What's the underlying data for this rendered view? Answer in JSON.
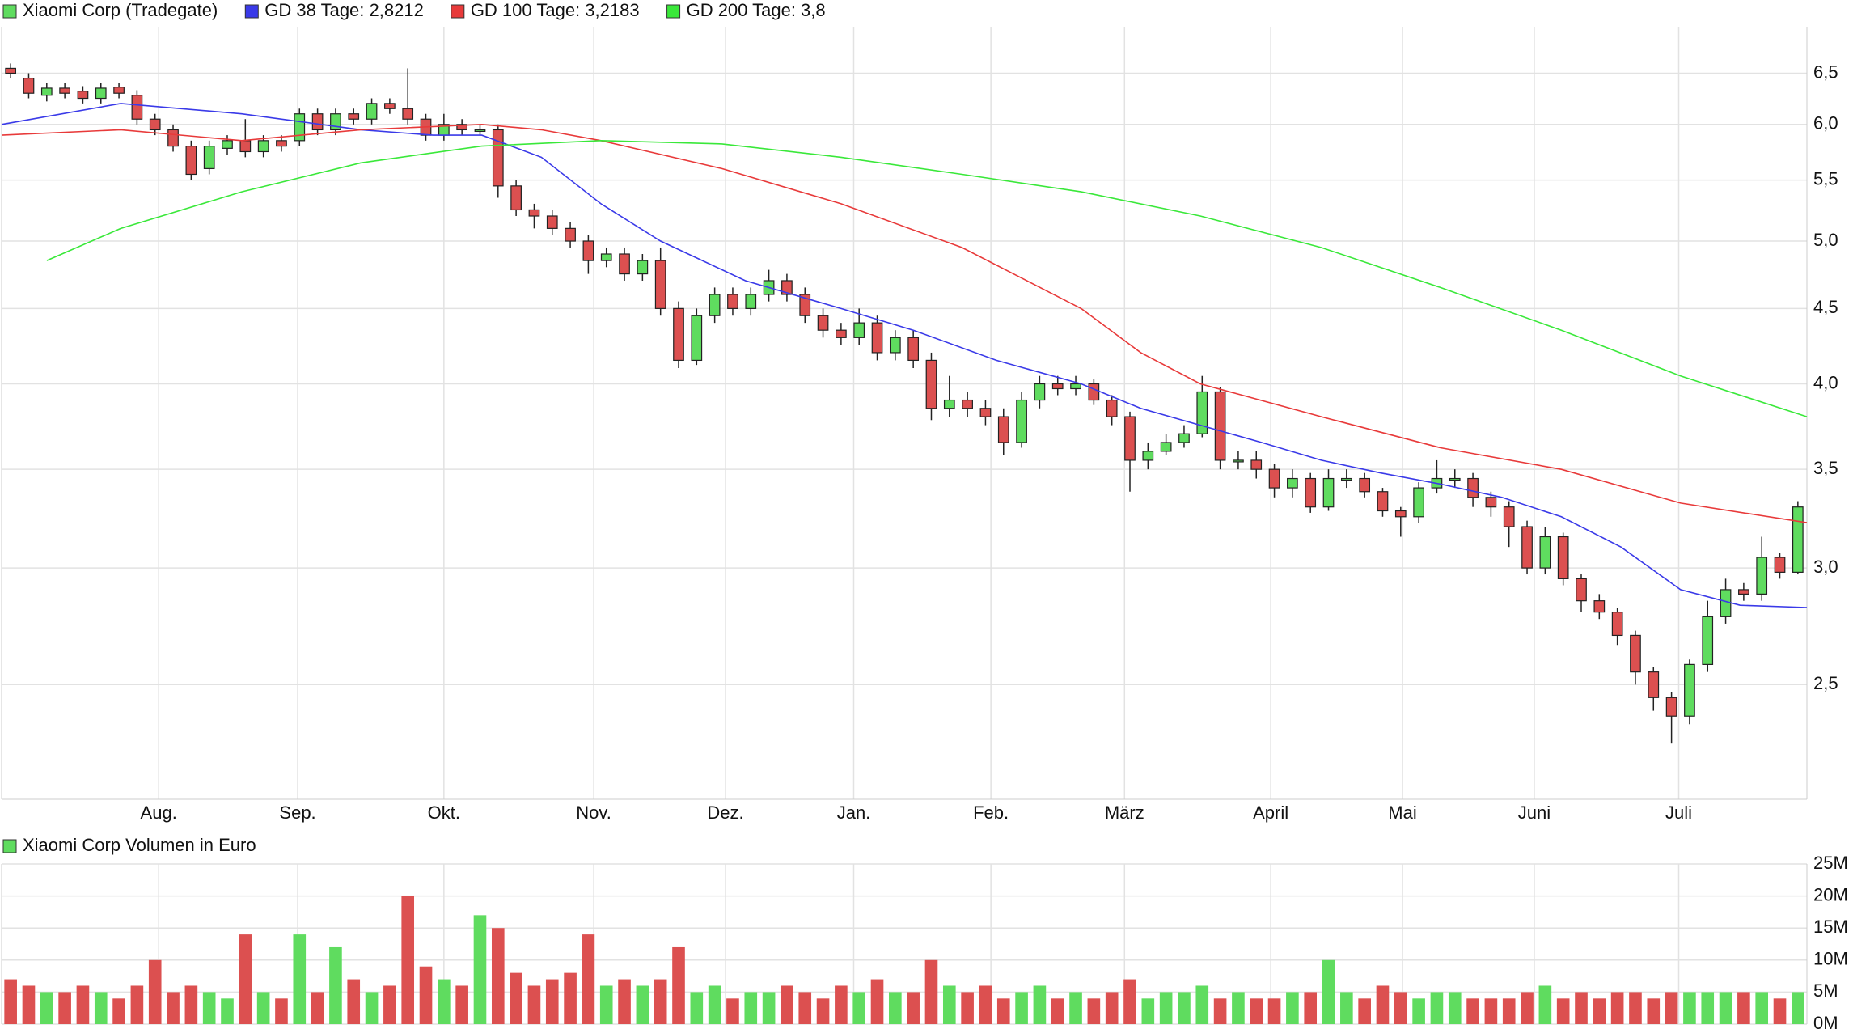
{
  "chart_data": {
    "type": "candlestick",
    "title": "Xiaomi Corp (Tradegate)",
    "log_scale": true,
    "grid": true,
    "up_color": "#5fdc5f",
    "down_color": "#dc5050",
    "xlim": [
      0,
      100
    ],
    "xticks": [
      {
        "value": 8.7,
        "label": "Aug."
      },
      {
        "value": 16.4,
        "label": "Sep."
      },
      {
        "value": 24.5,
        "label": "Okt."
      },
      {
        "value": 32.8,
        "label": "Nov."
      },
      {
        "value": 40.1,
        "label": "Dez."
      },
      {
        "value": 47.2,
        "label": "Jan."
      },
      {
        "value": 54.8,
        "label": "Feb."
      },
      {
        "value": 62.2,
        "label": "März"
      },
      {
        "value": 70.3,
        "label": "April"
      },
      {
        "value": 77.6,
        "label": "Mai"
      },
      {
        "value": 84.9,
        "label": "Juni"
      },
      {
        "value": 92.9,
        "label": "Juli"
      }
    ],
    "ylim": [
      2.09,
      6.99
    ],
    "yticks": [
      {
        "value": 2.5,
        "label": "2,5"
      },
      {
        "value": 3,
        "label": "3,0"
      },
      {
        "value": 3.5,
        "label": "3,5"
      },
      {
        "value": 4,
        "label": "4,0"
      },
      {
        "value": 4.5,
        "label": "4,5"
      },
      {
        "value": 5,
        "label": "5,0"
      },
      {
        "value": 5.5,
        "label": "5,5"
      },
      {
        "value": 6,
        "label": "6,0"
      },
      {
        "value": 6.5,
        "label": "6,5"
      }
    ],
    "open": [
      6.55,
      6.45,
      6.28,
      6.35,
      6.32,
      6.25,
      6.36,
      6.28,
      6.05,
      5.95,
      5.8,
      5.6,
      5.78,
      5.85,
      5.75,
      5.85,
      5.85,
      6.1,
      5.95,
      6.1,
      6.05,
      6.2,
      6.15,
      6.05,
      5.9,
      6.0,
      5.95,
      5.95,
      5.45,
      5.25,
      5.2,
      5.1,
      5.0,
      4.85,
      4.9,
      4.75,
      4.85,
      4.5,
      4.15,
      4.45,
      4.6,
      4.5,
      4.6,
      4.7,
      4.6,
      4.45,
      4.35,
      4.3,
      4.4,
      4.2,
      4.3,
      4.15,
      3.85,
      3.9,
      3.85,
      3.8,
      3.65,
      3.9,
      4.0,
      3.97,
      4.0,
      3.9,
      3.8,
      3.55,
      3.6,
      3.65,
      3.7,
      3.95,
      3.55,
      3.55,
      3.5,
      3.4,
      3.45,
      3.3,
      3.45,
      3.45,
      3.38,
      3.28,
      3.25,
      3.4,
      3.45,
      3.45,
      3.35,
      3.3,
      3.2,
      3.0,
      3.15,
      2.95,
      2.85,
      2.8,
      2.7,
      2.55,
      2.45,
      2.38,
      2.58,
      2.78,
      2.9,
      2.88,
      3.05,
      2.98
    ],
    "high": [
      6.6,
      6.5,
      6.4,
      6.4,
      6.37,
      6.4,
      6.4,
      6.33,
      6.1,
      6.0,
      5.85,
      5.85,
      5.9,
      6.05,
      5.9,
      5.9,
      6.15,
      6.15,
      6.15,
      6.15,
      6.25,
      6.25,
      6.55,
      6.1,
      6.1,
      6.05,
      6.0,
      6.0,
      5.5,
      5.3,
      5.25,
      5.15,
      5.05,
      4.95,
      4.95,
      4.9,
      4.95,
      4.55,
      4.5,
      4.65,
      4.65,
      4.65,
      4.78,
      4.75,
      4.65,
      4.5,
      4.4,
      4.5,
      4.45,
      4.35,
      4.35,
      4.2,
      4.05,
      3.95,
      3.9,
      3.85,
      3.95,
      4.05,
      4.05,
      4.05,
      4.03,
      3.93,
      3.83,
      3.65,
      3.7,
      3.75,
      4.05,
      3.98,
      3.6,
      3.6,
      3.53,
      3.5,
      3.48,
      3.5,
      3.5,
      3.48,
      3.4,
      3.3,
      3.43,
      3.55,
      3.5,
      3.48,
      3.38,
      3.33,
      3.23,
      3.2,
      3.17,
      2.97,
      2.88,
      2.82,
      2.72,
      2.57,
      2.47,
      2.6,
      2.85,
      2.95,
      2.93,
      3.15,
      3.07,
      3.33
    ],
    "low": [
      6.45,
      6.25,
      6.22,
      6.25,
      6.2,
      6.2,
      6.25,
      6.0,
      5.9,
      5.75,
      5.5,
      5.55,
      5.72,
      5.7,
      5.7,
      5.75,
      5.8,
      5.9,
      5.9,
      6.0,
      6.0,
      6.1,
      6.0,
      5.85,
      5.85,
      5.9,
      5.9,
      5.35,
      5.2,
      5.1,
      5.05,
      4.95,
      4.75,
      4.8,
      4.7,
      4.7,
      4.45,
      4.1,
      4.12,
      4.4,
      4.45,
      4.45,
      4.55,
      4.55,
      4.4,
      4.3,
      4.25,
      4.25,
      4.15,
      4.15,
      4.1,
      3.78,
      3.8,
      3.8,
      3.75,
      3.58,
      3.62,
      3.85,
      3.93,
      3.93,
      3.87,
      3.75,
      3.38,
      3.5,
      3.58,
      3.62,
      3.68,
      3.5,
      3.5,
      3.45,
      3.35,
      3.35,
      3.27,
      3.28,
      3.4,
      3.35,
      3.25,
      3.15,
      3.22,
      3.37,
      3.4,
      3.3,
      3.25,
      3.1,
      2.97,
      2.97,
      2.92,
      2.8,
      2.77,
      2.66,
      2.5,
      2.4,
      2.28,
      2.35,
      2.55,
      2.75,
      2.85,
      2.85,
      2.95,
      2.97
    ],
    "close": [
      6.5,
      6.3,
      6.35,
      6.3,
      6.25,
      6.35,
      6.3,
      6.05,
      5.95,
      5.8,
      5.55,
      5.8,
      5.85,
      5.75,
      5.85,
      5.8,
      6.1,
      5.95,
      6.1,
      6.05,
      6.2,
      6.15,
      6.05,
      5.9,
      6.0,
      5.95,
      5.95,
      5.45,
      5.25,
      5.2,
      5.1,
      5.0,
      4.85,
      4.9,
      4.75,
      4.85,
      4.5,
      4.15,
      4.45,
      4.6,
      4.5,
      4.6,
      4.7,
      4.6,
      4.45,
      4.35,
      4.3,
      4.4,
      4.2,
      4.3,
      4.15,
      3.85,
      3.9,
      3.85,
      3.8,
      3.65,
      3.9,
      4.0,
      3.97,
      4.0,
      3.9,
      3.8,
      3.55,
      3.6,
      3.65,
      3.7,
      3.95,
      3.55,
      3.55,
      3.5,
      3.4,
      3.45,
      3.3,
      3.45,
      3.45,
      3.38,
      3.28,
      3.25,
      3.4,
      3.45,
      3.45,
      3.35,
      3.3,
      3.2,
      3.0,
      3.15,
      2.95,
      2.85,
      2.8,
      2.7,
      2.55,
      2.45,
      2.38,
      2.58,
      2.78,
      2.9,
      2.88,
      3.05,
      2.98,
      3.3
    ],
    "series": [
      {
        "name": "GD 38 Tage: 2,8212",
        "color": "#3a3ae8",
        "x": [
          0,
          6.6,
          13.3,
          19.9,
          23.9,
          26.6,
          29.9,
          33.2,
          36.5,
          41.2,
          46.5,
          50.5,
          55.1,
          59.8,
          63.1,
          66.4,
          69.8,
          73.1,
          76.4,
          79.7,
          83.1,
          86.4,
          89.7,
          93,
          96.3,
          100
        ],
        "values": [
          6.0,
          6.2,
          6.1,
          5.95,
          5.9,
          5.9,
          5.7,
          5.3,
          5.0,
          4.7,
          4.5,
          4.35,
          4.15,
          4.0,
          3.85,
          3.75,
          3.65,
          3.55,
          3.48,
          3.42,
          3.35,
          3.25,
          3.1,
          2.9,
          2.83,
          2.82
        ]
      },
      {
        "name": "GD 100 Tage: 3,2183",
        "color": "#e83a3a",
        "x": [
          0,
          6.6,
          13.3,
          19.9,
          26.6,
          29.9,
          33.2,
          39.9,
          46.5,
          53.2,
          59.8,
          63.1,
          66.4,
          73.1,
          79.7,
          86.4,
          93,
          100
        ],
        "values": [
          5.9,
          5.95,
          5.85,
          5.95,
          6.0,
          5.95,
          5.85,
          5.6,
          5.3,
          4.95,
          4.5,
          4.2,
          4.0,
          3.8,
          3.62,
          3.5,
          3.32,
          3.22
        ]
      },
      {
        "name": "GD 200 Tage: 3,8",
        "color": "#3ae83a",
        "x": [
          2.5,
          6.6,
          13.3,
          19.9,
          26.6,
          33.2,
          39.9,
          46.5,
          53.2,
          59.8,
          66.4,
          73.1,
          79.7,
          86.4,
          93,
          100
        ],
        "values": [
          4.85,
          5.1,
          5.4,
          5.65,
          5.8,
          5.85,
          5.82,
          5.7,
          5.55,
          5.4,
          5.2,
          4.95,
          4.65,
          4.35,
          4.05,
          3.8
        ]
      }
    ],
    "volume": {
      "type": "bar",
      "title": "Xiaomi Corp Volumen in Euro",
      "ylim": [
        0,
        25000000
      ],
      "yticks": [
        {
          "value": 0,
          "label": "0M"
        },
        {
          "value": 5000000,
          "label": "5M"
        },
        {
          "value": 10000000,
          "label": "10M"
        },
        {
          "value": 15000000,
          "label": "15M"
        },
        {
          "value": 20000000,
          "label": "20M"
        },
        {
          "value": 25000000,
          "label": "25M"
        }
      ],
      "values": [
        7000000,
        6000000,
        5000000,
        5000000,
        6000000,
        5000000,
        4000000,
        6000000,
        10000000,
        5000000,
        6000000,
        5000000,
        4000000,
        14000000,
        5000000,
        4000000,
        14000000,
        5000000,
        12000000,
        7000000,
        5000000,
        6000000,
        20000000,
        9000000,
        7000000,
        6000000,
        17000000,
        15000000,
        8000000,
        6000000,
        7000000,
        8000000,
        14000000,
        6000000,
        7000000,
        6000000,
        7000000,
        12000000,
        5000000,
        6000000,
        4000000,
        5000000,
        5000000,
        6000000,
        5000000,
        4000000,
        6000000,
        5000000,
        7000000,
        5000000,
        5000000,
        10000000,
        6000000,
        5000000,
        6000000,
        4000000,
        5000000,
        6000000,
        4000000,
        5000000,
        4000000,
        5000000,
        7000000,
        4000000,
        5000000,
        5000000,
        6000000,
        4000000,
        5000000,
        4000000,
        4000000,
        5000000,
        5000000,
        10000000,
        5000000,
        4000000,
        6000000,
        5000000,
        4000000,
        5000000,
        5000000,
        4000000,
        4000000,
        4000000,
        5000000,
        6000000,
        4000000,
        5000000,
        4000000,
        5000000,
        5000000,
        4000000,
        5000000,
        5000000,
        5000000,
        5000000,
        5000000,
        5000000,
        4000000,
        5000000
      ]
    }
  }
}
